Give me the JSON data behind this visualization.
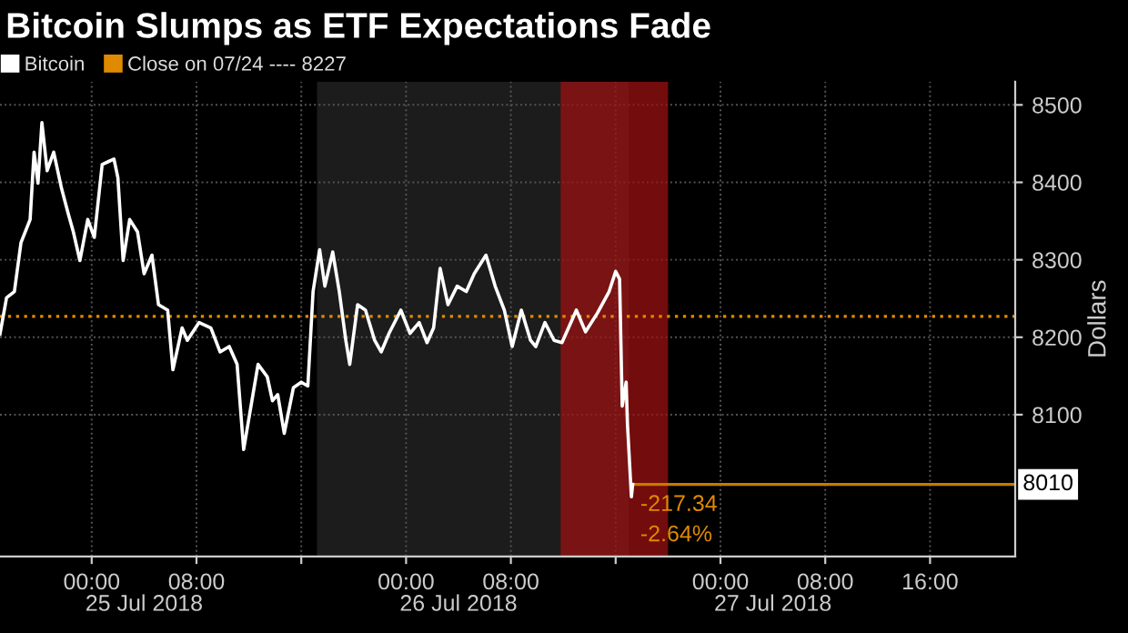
{
  "chart_data": {
    "type": "line",
    "title": "Bitcoin Slumps as ETF Expectations Fade",
    "ylabel": "Dollars",
    "x": [
      "2018-07-24T17:00",
      "2018-07-24T17:30",
      "2018-07-24T18:06",
      "2018-07-24T18:36",
      "2018-07-24T19:18",
      "2018-07-24T19:36",
      "2018-07-24T19:54",
      "2018-07-24T20:12",
      "2018-07-24T20:36",
      "2018-07-24T21:06",
      "2018-07-24T21:42",
      "2018-07-24T22:12",
      "2018-07-24T22:36",
      "2018-07-24T23:06",
      "2018-07-24T23:42",
      "2018-07-25T00:12",
      "2018-07-25T00:48",
      "2018-07-25T01:18",
      "2018-07-25T01:42",
      "2018-07-25T02:00",
      "2018-07-25T02:24",
      "2018-07-25T02:54",
      "2018-07-25T03:30",
      "2018-07-25T04:00",
      "2018-07-25T04:36",
      "2018-07-25T05:06",
      "2018-07-25T05:48",
      "2018-07-25T06:12",
      "2018-07-25T06:54",
      "2018-07-25T07:18",
      "2018-07-25T08:12",
      "2018-07-25T09:06",
      "2018-07-25T09:48",
      "2018-07-25T10:30",
      "2018-07-25T11:06",
      "2018-07-25T11:36",
      "2018-07-25T12:00",
      "2018-07-25T12:42",
      "2018-07-25T13:24",
      "2018-07-25T13:48",
      "2018-07-25T14:12",
      "2018-07-25T14:42",
      "2018-07-25T15:24",
      "2018-07-25T16:00",
      "2018-07-25T16:30",
      "2018-07-25T16:54",
      "2018-07-25T17:24",
      "2018-07-25T17:48",
      "2018-07-25T18:24",
      "2018-07-25T18:54",
      "2018-07-25T19:24",
      "2018-07-25T19:42",
      "2018-07-25T20:18",
      "2018-07-25T20:54",
      "2018-07-25T21:36",
      "2018-07-25T22:06",
      "2018-07-25T22:42",
      "2018-07-25T23:36",
      "2018-07-26T00:18",
      "2018-07-26T01:00",
      "2018-07-26T01:36",
      "2018-07-26T02:06",
      "2018-07-26T02:36",
      "2018-07-26T03:12",
      "2018-07-26T03:54",
      "2018-07-26T04:36",
      "2018-07-26T05:12",
      "2018-07-26T06:06",
      "2018-07-26T06:48",
      "2018-07-26T07:30",
      "2018-07-26T08:06",
      "2018-07-26T08:48",
      "2018-07-26T09:30",
      "2018-07-26T09:54",
      "2018-07-26T10:36",
      "2018-07-26T11:18",
      "2018-07-26T11:54",
      "2018-07-26T13:00",
      "2018-07-26T13:42",
      "2018-07-26T14:36",
      "2018-07-26T15:30",
      "2018-07-26T16:00",
      "2018-07-26T16:18",
      "2018-07-26T16:30",
      "2018-07-26T16:48",
      "2018-07-26T16:54",
      "2018-07-26T17:12",
      "2018-07-26T17:18"
    ],
    "series": [
      {
        "name": "Bitcoin",
        "color": "#ffffff",
        "values": [
          8204,
          8251,
          8259,
          8322,
          8352,
          8439,
          8399,
          8477,
          8415,
          8439,
          8392,
          8360,
          8336,
          8299,
          8352,
          8329,
          8423,
          8427,
          8430,
          8406,
          8299,
          8352,
          8336,
          8282,
          8306,
          8242,
          8235,
          8158,
          8212,
          8196,
          8219,
          8212,
          8181,
          8188,
          8165,
          8055,
          8095,
          8165,
          8149,
          8118,
          8126,
          8076,
          8135,
          8142,
          8137,
          8259,
          8313,
          8266,
          8310,
          8259,
          8196,
          8165,
          8242,
          8235,
          8196,
          8181,
          8205,
          8235,
          8205,
          8219,
          8193,
          8212,
          8289,
          8242,
          8266,
          8259,
          8282,
          8306,
          8266,
          8235,
          8188,
          8235,
          8196,
          8188,
          8219,
          8196,
          8193,
          8235,
          8207,
          8231,
          8259,
          8285,
          8275,
          8111,
          8142,
          8088,
          7994,
          8010
        ]
      }
    ],
    "xlim": [
      "2018-07-24T17:00",
      "2018-07-27T22:30"
    ],
    "xticks": [
      {
        "value": "2018-07-25T00:00",
        "label": "00:00"
      },
      {
        "value": "2018-07-25T08:00",
        "label": "08:00"
      },
      {
        "value": "2018-07-25T16:00",
        "label": null
      },
      {
        "value": "2018-07-26T00:00",
        "label": "00:00"
      },
      {
        "value": "2018-07-26T08:00",
        "label": "08:00"
      },
      {
        "value": "2018-07-26T16:00",
        "label": null
      },
      {
        "value": "2018-07-27T00:00",
        "label": "00:00"
      },
      {
        "value": "2018-07-27T08:00",
        "label": "08:00"
      },
      {
        "value": "2018-07-27T16:00",
        "label": "16:00"
      }
    ],
    "x2lim": [
      "2018-07-24T17:00",
      "2018-07-27T22:30"
    ],
    "x2ticks": [
      {
        "value": "2018-07-25T04:00",
        "label": "25 Jul 2018"
      },
      {
        "value": "2018-07-26T04:00",
        "label": "26 Jul 2018"
      },
      {
        "value": "2018-07-27T04:00",
        "label": "27 Jul 2018"
      }
    ],
    "ylim": [
      7917,
      8530
    ],
    "yticks": [
      8100,
      8200,
      8300,
      8400,
      8500
    ],
    "ref_lines": [
      {
        "axis": "y",
        "value": 8227,
        "label": "Close on 07/24 ---- 8227",
        "color": "#e08a00",
        "line_style": "dotted"
      },
      {
        "axis": "y",
        "value": 8010,
        "label": "8010",
        "color": "#c87800",
        "line_style": "solid"
      }
    ],
    "bands": [
      {
        "axis": "x",
        "from": "2018-07-25T17:12",
        "to": "2018-07-26T17:00",
        "color": "#1c1c1c"
      },
      {
        "axis": "x",
        "from": "2018-07-26T11:48",
        "to": "2018-07-26T20:00",
        "color": "#a01010"
      }
    ],
    "annotations": [
      {
        "text": "-217.34",
        "x": "2018-07-26T17:18",
        "y": 8010
      },
      {
        "text": "-2.64%",
        "x": "2018-07-26T17:18",
        "y": 8010
      }
    ],
    "grid": true,
    "legend": "top left",
    "marker": "none",
    "line_style": "solid"
  }
}
